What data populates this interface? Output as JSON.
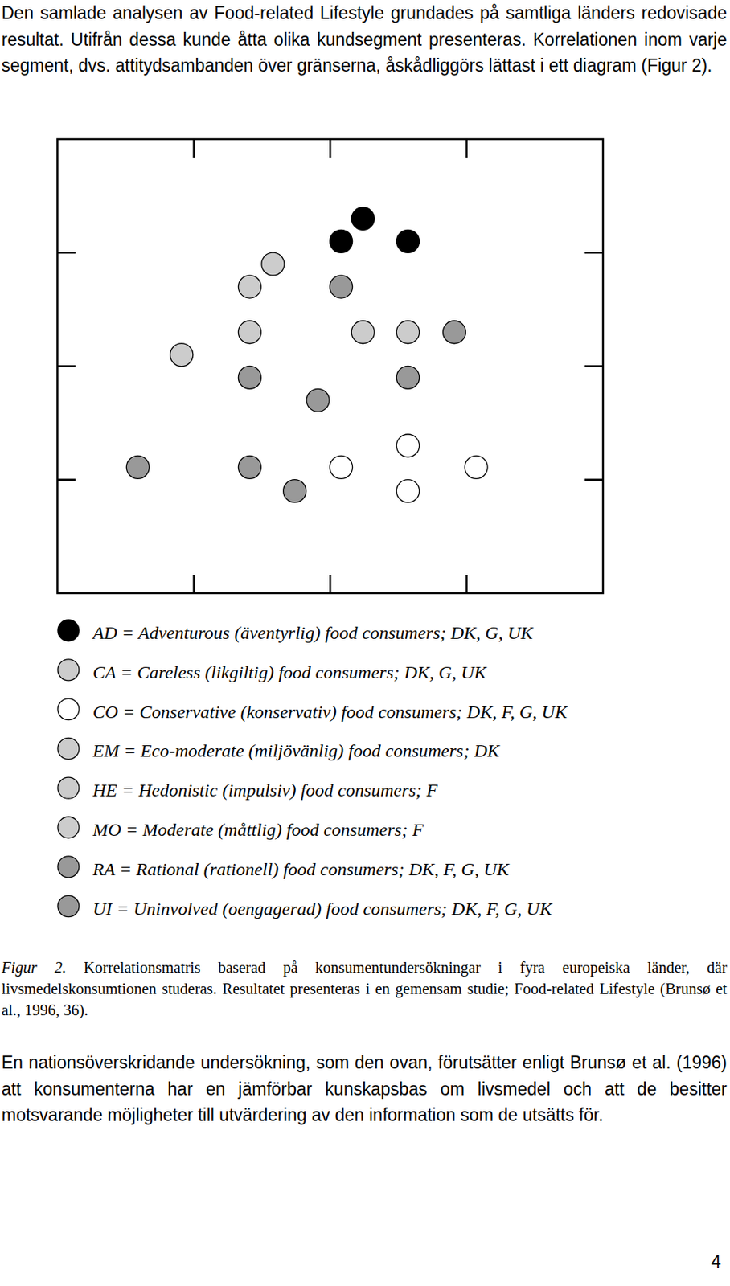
{
  "page": {
    "intro": "Den samlade analysen av Food-related Lifestyle grundades på samtliga länders redovisade resultat. Utifrån dessa kunde åtta olika kundsegment presenteras. Korrelationen inom varje segment, dvs. attitydsambanden över gränserna, åskådliggörs lättast i ett diagram (Figur 2).",
    "caption_label": "Figur 2.",
    "caption": "Korrelationsmatris baserad på konsumentundersökningar i fyra europeiska länder, där livsmedelskonsumtionen studeras. Resultatet presenteras i en gemensam studie; Food-related Lifestyle (Brunsø et al., 1996, 36).",
    "outro": "En nationsöverskridande undersökning, som den ovan, förutsätter enligt Brunsø et al. (1996) att konsumenterna har en jämförbar kunskapsbas om livsmedel och att de besitter motsvarande möjligheter till utvärdering av den information som de utsätts för.",
    "page_number": "4"
  },
  "chart_data": {
    "type": "scatter",
    "marker": "circle",
    "legend": "bottom",
    "tick_labels": false,
    "xlim": [
      0,
      4
    ],
    "ylim": [
      0,
      4
    ],
    "xticks": [
      1,
      2,
      3
    ],
    "yticks": [
      1,
      2,
      3
    ],
    "series": [
      {
        "name": "AD = Adventurous (äventyrlig) food consumers; DK, G, UK",
        "color": "#000000",
        "x": [
          2.24,
          2.08,
          2.57
        ],
        "values": [
          3.3,
          3.1,
          3.1
        ]
      },
      {
        "name": "CA = Careless (likgiltig) food consumers; DK, G, UK",
        "color": "#cccccc",
        "x": [
          1.58,
          1.41,
          1.41
        ],
        "values": [
          2.9,
          2.7,
          2.3
        ]
      },
      {
        "name": "CO = Conservative (konservativ) food consumers; DK, F, G, UK",
        "color": "#ffffff",
        "x": [
          2.57,
          2.08,
          3.07,
          2.57
        ],
        "values": [
          1.3,
          1.11,
          1.11,
          0.9
        ]
      },
      {
        "name": "EM = Eco-moderate (miljövänlig) food consumers; DK",
        "color": "#cccccc",
        "x": [
          2.24
        ],
        "values": [
          2.3
        ]
      },
      {
        "name": "HE = Hedonistic (impulsiv) food consumers; F",
        "color": "#cccccc",
        "x": [
          2.57
        ],
        "values": [
          2.3
        ]
      },
      {
        "name": "MO = Moderate (måttlig) food consumers; F",
        "color": "#cccccc",
        "x": [
          0.91
        ],
        "values": [
          2.1
        ]
      },
      {
        "name": "RA = Rational (rationell) food consumers; DK, F, G, UK",
        "color": "#999999",
        "x": [
          2.08,
          2.91,
          1.41,
          2.57
        ],
        "values": [
          2.7,
          2.3,
          1.9,
          1.9
        ]
      },
      {
        "name": "UI = Uninvolved (oengagerad) food consumers; DK, F, G, UK",
        "color": "#999999",
        "x": [
          1.91,
          0.59,
          1.41,
          1.74
        ],
        "values": [
          1.7,
          1.11,
          1.11,
          0.9
        ]
      }
    ]
  }
}
